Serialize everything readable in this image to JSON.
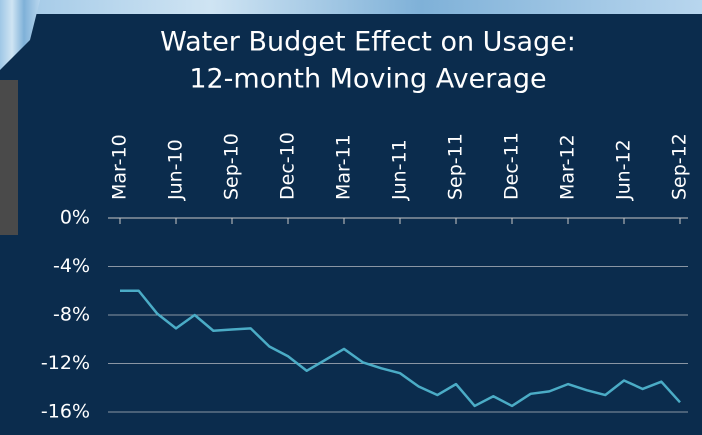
{
  "chart_data": {
    "type": "line",
    "title": [
      "Water Budget Effect on Usage:",
      "12-month Moving Average"
    ],
    "categories": [
      "Mar-10",
      null,
      null,
      "Jun-10",
      null,
      null,
      "Sep-10",
      null,
      null,
      "Dec-10",
      null,
      null,
      "Mar-11",
      null,
      null,
      "Jun-11",
      null,
      null,
      "Sep-11",
      null,
      null,
      "Dec-11",
      null,
      null,
      "Mar-12",
      null,
      null,
      "Jun-12",
      null,
      null,
      "Sep-12"
    ],
    "series": [
      {
        "name": "Water Budget Effect",
        "color": "#4bacc6",
        "values": [
          -6.0,
          -6.0,
          -7.9,
          -9.1,
          -8.0,
          -9.3,
          -9.2,
          -9.1,
          -10.6,
          -11.4,
          -12.6,
          -11.7,
          -10.8,
          -11.9,
          -12.4,
          -12.8,
          -13.9,
          -14.6,
          -13.7,
          -15.5,
          -14.7,
          -15.5,
          -14.5,
          -14.3,
          -13.7,
          -14.2,
          -14.6,
          -13.4,
          -14.1,
          -13.5,
          -15.2
        ]
      }
    ],
    "ylim": [
      -16,
      0
    ],
    "yticks": [
      {
        "value": 0,
        "label": "0%"
      },
      {
        "value": -4,
        "label": "-4%"
      },
      {
        "value": -8,
        "label": "-8%"
      },
      {
        "value": -12,
        "label": "-12%"
      },
      {
        "value": -16,
        "label": "-16%"
      }
    ],
    "grid": true
  }
}
